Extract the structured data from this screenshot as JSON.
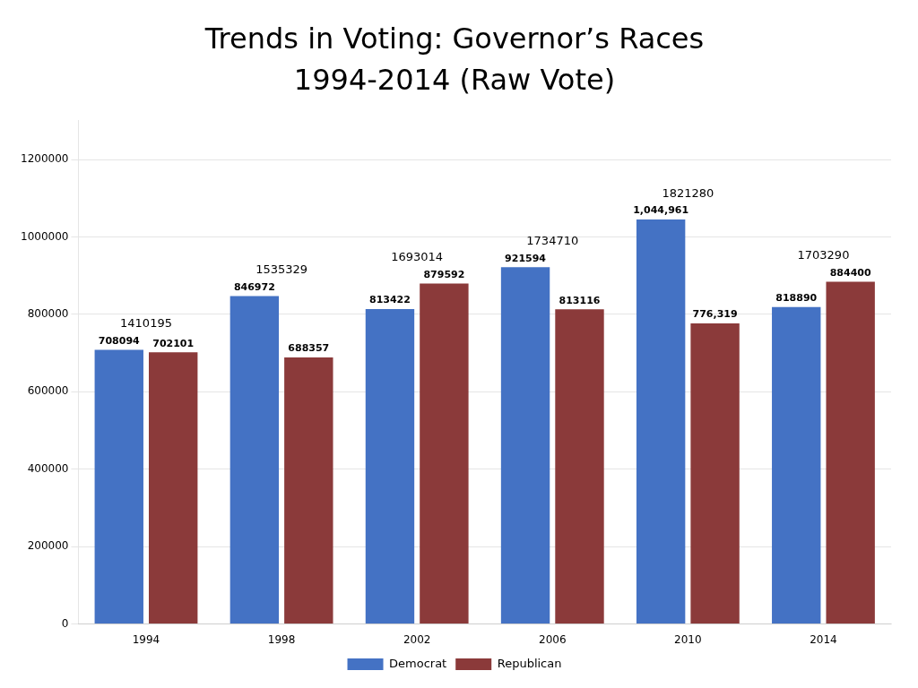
{
  "chart_data": {
    "type": "bar",
    "title": "Trends in Voting: Governor’s Races",
    "subtitle": "1994-2014 (Raw Vote)",
    "categories": [
      "1994",
      "1998",
      "2002",
      "2006",
      "2010",
      "2014"
    ],
    "series": [
      {
        "name": "Democrat",
        "color": "#4472C4",
        "values": [
          708094,
          846972,
          813422,
          921594,
          1044961,
          818890
        ],
        "value_labels": [
          "708094",
          "846972",
          "813422",
          "921594",
          "1,044,961",
          "818890"
        ]
      },
      {
        "name": "Republican",
        "color": "#8B3A3A",
        "values": [
          702101,
          688357,
          879592,
          813116,
          776319,
          884400
        ],
        "value_labels": [
          "702101",
          "688357",
          "879592",
          "813116",
          "776,319",
          "884400"
        ]
      }
    ],
    "totals": [
      1410195,
      1535329,
      1693014,
      1734710,
      1821280,
      1703290
    ],
    "ylim": [
      0,
      1300000
    ],
    "yticks": [
      0,
      200000,
      400000,
      600000,
      800000,
      1000000,
      1200000
    ],
    "grid": true,
    "legend": "bottom",
    "data_labels": true
  }
}
